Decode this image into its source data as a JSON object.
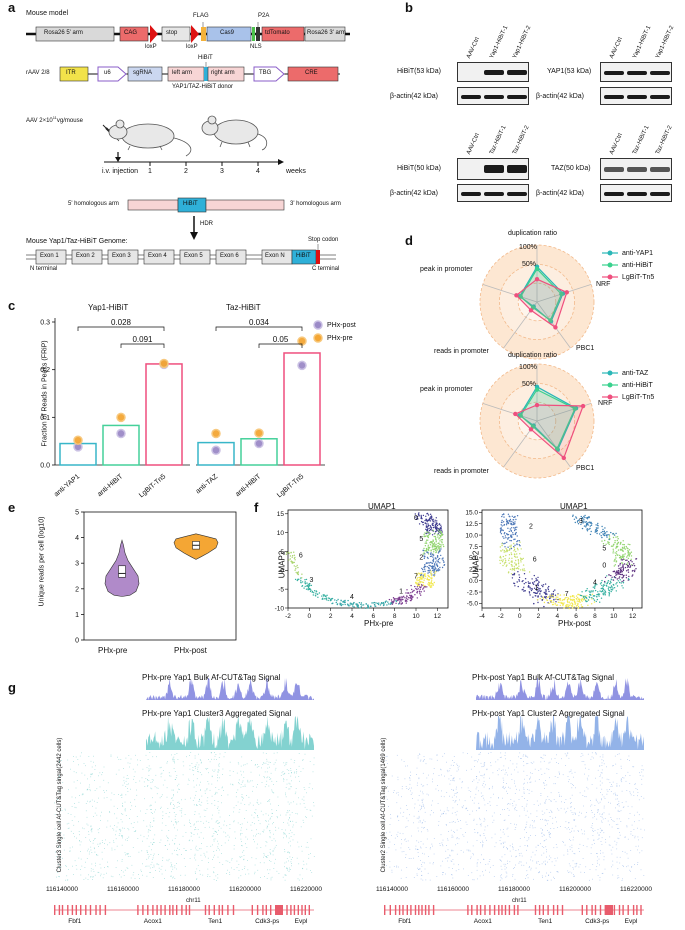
{
  "panels": {
    "a": "a",
    "b": "b",
    "c": "c",
    "d": "d",
    "e": "e",
    "f": "f",
    "g": "g"
  },
  "a": {
    "mouse_model": "Mouse model",
    "rosa5": "Rosa26 5' arm",
    "cag": "CAG",
    "stop": "stop",
    "flag": "FLAG",
    "cas9": "Cas9",
    "p2a": "P2A",
    "tdtomato": "tdTomato",
    "rosa3": "Rosa26 3' arm",
    "loxp1": "loxP",
    "loxp2": "loxP",
    "nls": "NLS",
    "raav": "rAAV 2/8",
    "itr": "ITR",
    "u6": "u6",
    "sgrna": "sgRNA",
    "hibit_top": "HiBiT",
    "left_arm": "left arm",
    "right_arm": "right arm",
    "tbg": "TBG",
    "cre": "CRE",
    "donor": "YAP1/TAZ-HiBiT donor",
    "aav_dose": "AAV 2×10",
    "aav_exp": "11",
    "aav_unit": "vg/mouse",
    "injection": "i.v. injection",
    "weeks": "weeks",
    "ticks": [
      "1",
      "2",
      "3",
      "4"
    ],
    "hom5": "5' homologous arm",
    "hibit_mid": "HiBiT",
    "hom3": "3' homologous arm",
    "hdr": "HDR",
    "genome": "Mouse Yap1/Taz-HiBiT Genome:",
    "exons": [
      "Exon 1",
      "Exon 2",
      "Exon 3",
      "Exon 4",
      "Exon 5",
      "Exon 6",
      "Exon N"
    ],
    "hibit_gen": "HiBiT",
    "stop_codon": "Stop codon",
    "n_term": "N terminal",
    "c_term": "C terminal"
  },
  "b": {
    "yap_lanes": [
      "AAV-Ctrl",
      "Yap1-HiBiT-1",
      "Yap1-HiBiT-2"
    ],
    "taz_lanes": [
      "AAV-Ctrl",
      "Taz-HiBiT-1",
      "Taz-HiBiT-2"
    ],
    "hibit53": "HiBiT(53 kDa)",
    "actin1": "β-actin(42 kDa)",
    "yap53": "YAP1(53 kDa)",
    "actin2": "β-actin(42 kDa)",
    "hibit50": "HiBiT(50 kDa)",
    "actin3": "β-actin(42 kDa)",
    "taz50": "TAZ(50 kDa)",
    "actin4": "β-actin(42 kDa)"
  },
  "c": {
    "colors": {
      "post": "#9b8ac7",
      "pre": "#f4a634",
      "b1": "#38b6c9",
      "b2": "#45d19a",
      "b3": "#ef4f7e"
    },
    "legend_post": "PHx-post",
    "legend_pre": "PHx-pre",
    "pval_yap_top": "0.028",
    "pval_yap_bot": "0.091",
    "pval_taz_top": "0.034",
    "pval_taz_bot": "0.05",
    "chart_data": {
      "type": "bar",
      "title": "",
      "ylabel": "Fraction of Reads in Peaks (FRiP)",
      "ylim": [
        0,
        0.3
      ],
      "yticks": [
        "0.0",
        "0.1",
        "0.2",
        "0.3"
      ],
      "groups": [
        "Yap1-HiBiT",
        "Taz-HiBiT"
      ],
      "categories": [
        "anti-YAP1",
        "anti-HiBiT",
        "LgBiT-Tn5",
        "anti-TAZ",
        "anti-HiBiT",
        "LgBiT-Tn5"
      ],
      "values": [
        0.045,
        0.083,
        0.212,
        0.047,
        0.055,
        0.235
      ],
      "series": [
        {
          "name": "PHx-post",
          "values": [
            0.038,
            0.066,
            0.211,
            0.031,
            0.045,
            0.209
          ]
        },
        {
          "name": "PHx-pre",
          "values": [
            0.052,
            0.1,
            0.213,
            0.066,
            0.067,
            0.26
          ]
        }
      ]
    }
  },
  "d": {
    "title_top": "duplication ratio",
    "pct100_top": "100%",
    "pct50_top": "50%",
    "nrf_top": "NRF",
    "pbc1_top": "PBC1",
    "rip_top": "reads in promoter",
    "pip_top": "peak in promoter",
    "legend_top": [
      "anti-YAP1",
      "anti-HiBiT",
      "LgBiT-Tn5"
    ],
    "title_bot": "duplication ratio",
    "pct100_bot": "100%",
    "pct50_bot": "50%",
    "nrf_bot": "NRF",
    "pbc1_bot": "PBC1",
    "rip_bot": "reads in promoter",
    "pip_bot": "peak in promoter",
    "legend_bot": [
      "anti-TAZ",
      "anti-HiBiT",
      "LgBiT-Tn5"
    ],
    "chart_data": [
      {
        "type": "radar",
        "axes": [
          "duplication ratio",
          "NRF",
          "PBC1",
          "reads in promoter",
          "peak in promoter"
        ],
        "range": [
          0,
          1
        ],
        "series": [
          {
            "name": "anti-YAP1",
            "values": [
              0.62,
              0.48,
              0.42,
              0.1,
              0.32
            ]
          },
          {
            "name": "anti-HiBiT",
            "values": [
              0.58,
              0.45,
              0.4,
              0.12,
              0.3
            ]
          },
          {
            "name": "LgBiT-Tn5",
            "values": [
              0.4,
              0.55,
              0.55,
              0.18,
              0.38
            ]
          }
        ]
      },
      {
        "type": "radar",
        "axes": [
          "duplication ratio",
          "NRF",
          "PBC1",
          "reads in promoter",
          "peak in promoter"
        ],
        "range": [
          0,
          1
        ],
        "series": [
          {
            "name": "anti-TAZ",
            "values": [
              0.6,
              0.72,
              0.62,
              0.1,
              0.32
            ]
          },
          {
            "name": "anti-HiBiT",
            "values": [
              0.55,
              0.7,
              0.6,
              0.12,
              0.3
            ]
          },
          {
            "name": "LgBiT-Tn5",
            "values": [
              0.28,
              0.85,
              0.8,
              0.18,
              0.4
            ]
          }
        ]
      }
    ]
  },
  "e": {
    "chart_data": {
      "type": "violin",
      "ylabel": "Unique reads per cell (log10)",
      "ylim": [
        0,
        5
      ],
      "yticks": [
        "0",
        "1",
        "2",
        "3",
        "4",
        "5"
      ],
      "categories": [
        "PHx-pre",
        "PHx-post"
      ],
      "medians": [
        2.6,
        3.7
      ],
      "colors": [
        "#b08ac9",
        "#f4a634"
      ]
    }
  },
  "f": {
    "title_left": "UMAP1",
    "title_right": "UMAP1",
    "ylabel_left": "UMAP2",
    "ylabel_right": "UMAP2",
    "xlabel_left": "PHx-pre",
    "xlabel_right": "PHx-post",
    "chart_data": [
      {
        "type": "scatter",
        "xticks": [
          "-2",
          "0",
          "2",
          "4",
          "6",
          "8",
          "10",
          "12"
        ],
        "yticks": [
          "-10",
          "-5",
          "0",
          "5",
          "10",
          "15"
        ],
        "xlim": [
          -2,
          13
        ],
        "ylim": [
          -10,
          16
        ],
        "clusters": [
          "0",
          "1",
          "2",
          "3",
          "4",
          "5",
          "6",
          "7"
        ]
      },
      {
        "type": "scatter",
        "xticks": [
          "-4",
          "-2",
          "0",
          "2",
          "4",
          "6",
          "8",
          "10",
          "12"
        ],
        "yticks": [
          "-5.0",
          "-2.5",
          "0.0",
          "2.5",
          "5.0",
          "7.5",
          "10.0",
          "12.5",
          "15.0"
        ],
        "xlim": [
          -4,
          13
        ],
        "ylim": [
          -6,
          15.5
        ],
        "clusters": [
          "0",
          "1",
          "2",
          "3",
          "4",
          "5",
          "6",
          "7"
        ]
      }
    ]
  },
  "g": {
    "bulk_left": "PHx-pre Yap1 Bulk Af-CUT&Tag Signal",
    "agg_left": "PHx-pre Yap1 Cluster3 Aggregated Signal",
    "ylab_left": "Cluster3 Single cell Af-CUT&Tag singal(2442 cells)",
    "bulk_right": "PHx-post Yap1 Bulk Af-CUT&Tag Signal",
    "agg_right": "PHx-post Yap1 Cluster2 Aggregated Signal",
    "ylab_right": "Cluster2 Single cell Af-CUT&Tag singal(1469 cells)",
    "coords": [
      "116140000",
      "116160000",
      "116180000",
      "116200000",
      "116220000"
    ],
    "chrom_left": "chr11",
    "chrom_right": "chr11",
    "genes": [
      "Fbf1",
      "Acox1",
      "Ten1",
      "Cdk3-ps",
      "Evpl"
    ]
  }
}
